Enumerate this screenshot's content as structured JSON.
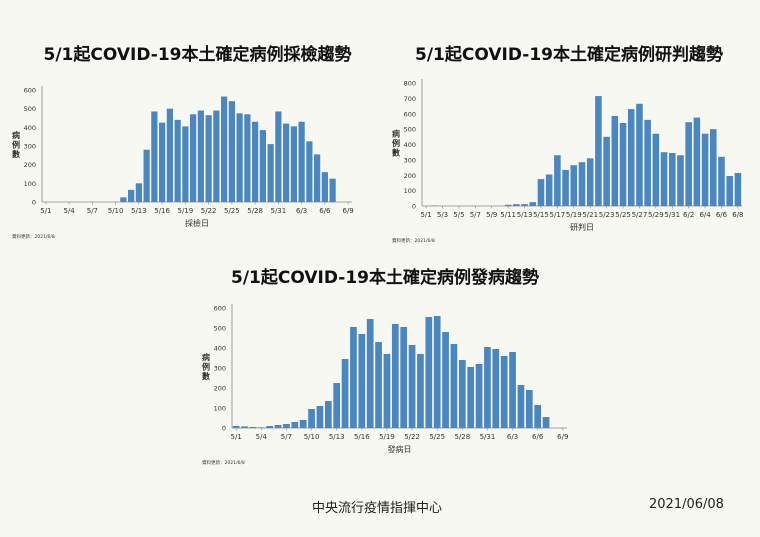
{
  "footer": {
    "agency": "中央流行疫情指揮中心",
    "date": "2021/06/08"
  },
  "chart_data": [
    {
      "type": "bar",
      "title": "5/1起COVID-19本土確定病例採檢趨勢",
      "xlabel": "採檢日",
      "ylabel": "病例數",
      "ylim": [
        0,
        600
      ],
      "yticks": [
        0,
        100,
        200,
        300,
        400,
        500,
        600
      ],
      "source_note": "資料更新：2021/6/8",
      "grid": false,
      "color": "#4a86c0",
      "categories": [
        "5/1",
        "5/2",
        "5/3",
        "5/4",
        "5/5",
        "5/6",
        "5/7",
        "5/8",
        "5/9",
        "5/10",
        "5/11",
        "5/12",
        "5/13",
        "5/14",
        "5/15",
        "5/16",
        "5/17",
        "5/18",
        "5/19",
        "5/20",
        "5/21",
        "5/22",
        "5/23",
        "5/24",
        "5/25",
        "5/26",
        "5/27",
        "5/28",
        "5/29",
        "5/30",
        "5/31",
        "6/1",
        "6/2",
        "6/3",
        "6/4",
        "6/5",
        "6/6",
        "6/7",
        "6/8",
        "6/9"
      ],
      "tick_labels": [
        "5/1",
        "5/4",
        "5/7",
        "5/10",
        "5/13",
        "5/16",
        "5/19",
        "5/22",
        "5/25",
        "5/28",
        "5/31",
        "6/3",
        "6/6",
        "6/9"
      ],
      "values": [
        0,
        0,
        0,
        0,
        0,
        0,
        0,
        0,
        0,
        0,
        25,
        65,
        100,
        280,
        485,
        425,
        500,
        440,
        405,
        470,
        490,
        465,
        490,
        565,
        540,
        475,
        470,
        430,
        385,
        310,
        485,
        420,
        405,
        430,
        325,
        255,
        160,
        125,
        0,
        0
      ]
    },
    {
      "type": "bar",
      "title": "5/1起COVID-19本土確定病例研判趨勢",
      "xlabel": "研判日",
      "ylabel": "病例數",
      "ylim": [
        0,
        800
      ],
      "yticks": [
        0,
        100,
        200,
        300,
        400,
        500,
        600,
        700,
        800
      ],
      "source_note": "資料更新：2021/6/8",
      "grid": false,
      "color": "#4a86c0",
      "categories": [
        "5/1",
        "5/2",
        "5/3",
        "5/4",
        "5/5",
        "5/6",
        "5/7",
        "5/8",
        "5/9",
        "5/10",
        "5/11",
        "5/12",
        "5/13",
        "5/14",
        "5/15",
        "5/16",
        "5/17",
        "5/18",
        "5/19",
        "5/20",
        "5/21",
        "5/22",
        "5/23",
        "5/24",
        "5/25",
        "5/26",
        "5/27",
        "5/28",
        "5/29",
        "5/30",
        "5/31",
        "6/1",
        "6/2",
        "6/3",
        "6/4",
        "6/5",
        "6/6",
        "6/7",
        "6/8"
      ],
      "tick_labels": [
        "5/1",
        "5/3",
        "5/5",
        "5/7",
        "5/9",
        "5/11",
        "5/13",
        "5/15",
        "5/17",
        "5/19",
        "5/21",
        "5/23",
        "5/25",
        "5/27",
        "5/29",
        "5/31",
        "6/2",
        "6/4",
        "6/6",
        "6/8"
      ],
      "values": [
        0,
        3,
        0,
        0,
        0,
        0,
        0,
        0,
        0,
        0,
        8,
        12,
        12,
        25,
        175,
        205,
        330,
        235,
        265,
        285,
        310,
        715,
        450,
        585,
        540,
        630,
        665,
        560,
        470,
        350,
        345,
        330,
        545,
        575,
        470,
        500,
        320,
        195,
        215
      ]
    },
    {
      "type": "bar",
      "title": "5/1起COVID-19本土確定病例發病趨勢",
      "xlabel": "發病日",
      "ylabel": "病例數",
      "ylim": [
        0,
        600
      ],
      "yticks": [
        0,
        100,
        200,
        300,
        400,
        500,
        600
      ],
      "source_note": "資料更新：2021/6/8",
      "grid": false,
      "color": "#4a86c0",
      "categories": [
        "5/1",
        "5/2",
        "5/3",
        "5/4",
        "5/5",
        "5/6",
        "5/7",
        "5/8",
        "5/9",
        "5/10",
        "5/11",
        "5/12",
        "5/13",
        "5/14",
        "5/15",
        "5/16",
        "5/17",
        "5/18",
        "5/19",
        "5/20",
        "5/21",
        "5/22",
        "5/23",
        "5/24",
        "5/25",
        "5/26",
        "5/27",
        "5/28",
        "5/29",
        "5/30",
        "5/31",
        "6/1",
        "6/2",
        "6/3",
        "6/4",
        "6/5",
        "6/6",
        "6/7",
        "6/8",
        "6/9"
      ],
      "tick_labels": [
        "5/1",
        "5/4",
        "5/7",
        "5/10",
        "5/13",
        "5/16",
        "5/19",
        "5/22",
        "5/25",
        "5/28",
        "5/31",
        "6/3",
        "6/6",
        "6/9"
      ],
      "values": [
        10,
        8,
        5,
        3,
        10,
        15,
        20,
        30,
        40,
        95,
        110,
        135,
        225,
        345,
        505,
        470,
        545,
        430,
        370,
        520,
        505,
        415,
        370,
        555,
        560,
        480,
        420,
        340,
        305,
        320,
        405,
        395,
        360,
        380,
        215,
        190,
        115,
        55,
        0,
        0
      ]
    }
  ]
}
